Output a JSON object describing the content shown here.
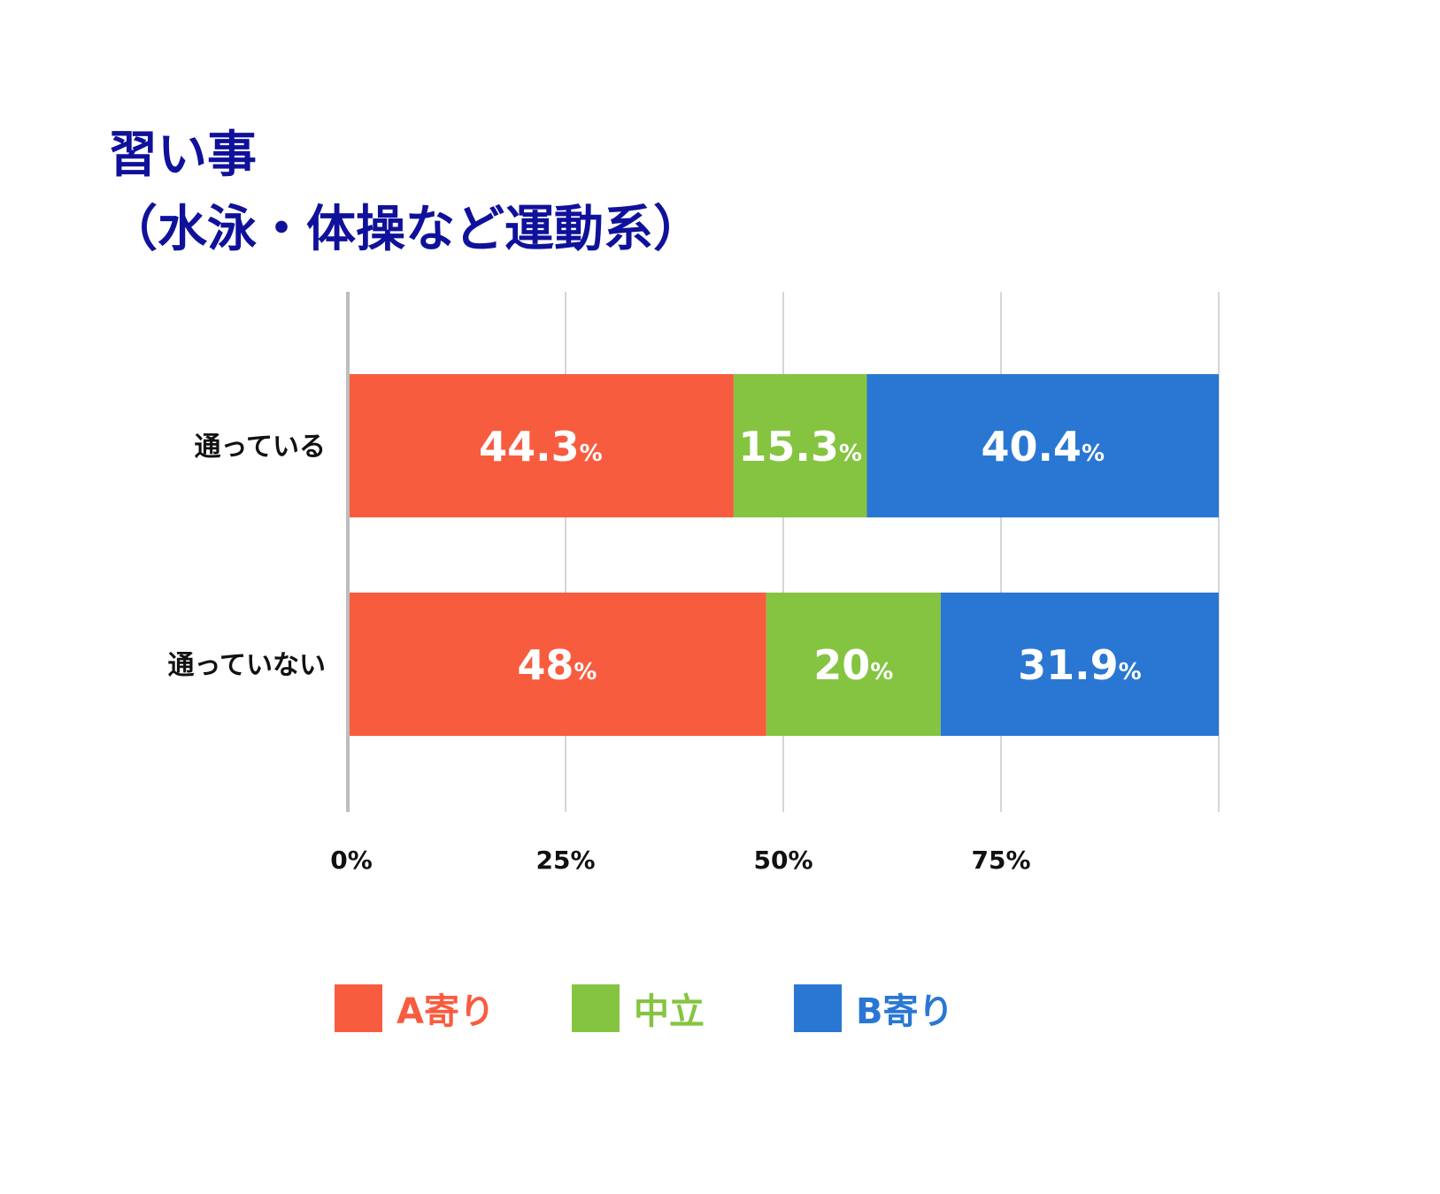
{
  "title": {
    "line1": "習い事",
    "line2": "（水泳・体操など運動系）"
  },
  "colors": {
    "title": "#10119a",
    "A寄り": "#f85c3f",
    "中立": "#85c441",
    "B寄り": "#2a77d3",
    "grid": "#c8c8c8",
    "axis": "#bdbdbd",
    "bar_label": "#ffffff",
    "tick_label": "#111111"
  },
  "chart_data": {
    "type": "bar",
    "orientation": "horizontal",
    "stacked": true,
    "title": "習い事（水泳・体操など運動系）",
    "categories": [
      "通っている",
      "通っていない"
    ],
    "series": [
      {
        "name": "A寄り",
        "values": [
          44.3,
          48
        ],
        "labels": [
          "44.3",
          "48"
        ]
      },
      {
        "name": "中立",
        "values": [
          15.3,
          20
        ],
        "labels": [
          "15.3",
          "20"
        ]
      },
      {
        "name": "B寄り",
        "values": [
          40.4,
          31.9
        ],
        "labels": [
          "40.4",
          "31.9"
        ]
      }
    ],
    "value_suffix": "%",
    "xlim": [
      0,
      100
    ],
    "x_ticks": [
      0,
      25,
      50,
      75
    ],
    "x_tick_labels": [
      "0%",
      "25%",
      "50%",
      "75%"
    ],
    "grid": true,
    "legend": {
      "position": "bottom",
      "items": [
        "A寄り",
        "中立",
        "B寄り"
      ]
    }
  }
}
